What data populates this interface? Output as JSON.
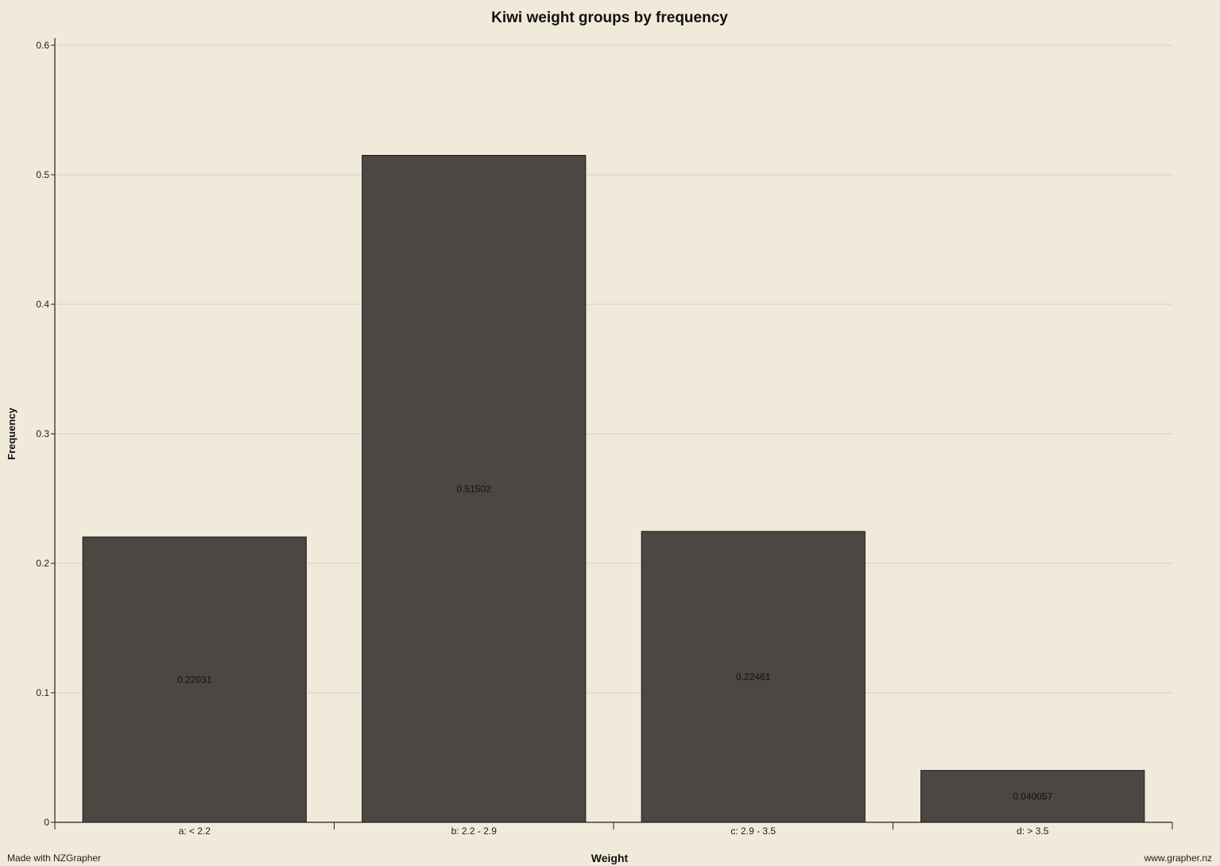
{
  "footer": {
    "made_with": "Made with NZGrapher",
    "site": "www.grapher.nz"
  },
  "colors": {
    "background": "#f1eadb",
    "bar_fill": "#4b4843",
    "bar_stroke": "#1a1a1a",
    "grid": "#d6d0c3"
  },
  "chart_data": {
    "type": "bar",
    "title": "Kiwi weight groups by frequency",
    "xlabel": "Weight",
    "ylabel": "Frequency",
    "categories": [
      "a: < 2.2",
      "b: 2.2 - 2.9",
      "c: 2.9 - 3.5",
      "d: > 3.5"
    ],
    "values": [
      0.22031,
      0.51502,
      0.22461,
      0.040057
    ],
    "value_labels": [
      "0.22031",
      "0.51502",
      "0.22461",
      "0.040057"
    ],
    "ylim": [
      0,
      0.6
    ],
    "yticks": [
      0,
      0.1,
      0.2,
      0.3,
      0.4,
      0.5,
      0.6
    ],
    "ytick_labels": [
      "0",
      "0.1",
      "0.2",
      "0.3",
      "0.4",
      "0.5",
      "0.6"
    ],
    "grid": true
  }
}
